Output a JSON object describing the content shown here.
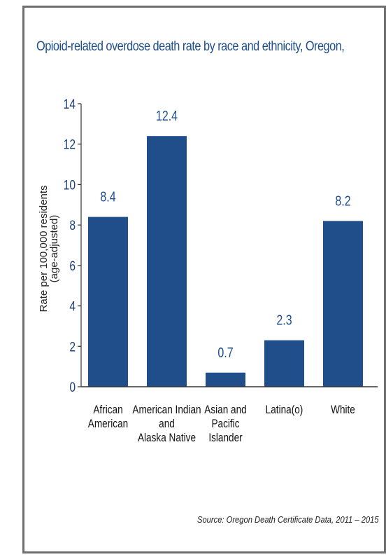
{
  "chart_data": {
    "type": "bar",
    "title": "Opioid-related overdose death rate by race and ethnicity, Oregon,",
    "ylabel": [
      "Rate per 100,000 residents",
      "(age-adjusted)"
    ],
    "xlabel": "",
    "ylim": [
      0,
      14
    ],
    "yticks": [
      0,
      2,
      4,
      6,
      8,
      10,
      12,
      14
    ],
    "categories": [
      [
        "African",
        "American"
      ],
      [
        "American Indian",
        "and",
        "Alaska Native"
      ],
      [
        "Asian and",
        "Pacific",
        "Islander"
      ],
      [
        "Latina(o)"
      ],
      [
        "White"
      ]
    ],
    "values": [
      8.4,
      12.4,
      0.7,
      2.3,
      8.2
    ],
    "value_labels": [
      "8.4",
      "12.4",
      "0.7",
      "2.3",
      "8.2"
    ],
    "bar_color": "#1f4e8a",
    "grid": false,
    "source": "Source: Oregon Death Certificate Data, 2011 – 2015"
  }
}
